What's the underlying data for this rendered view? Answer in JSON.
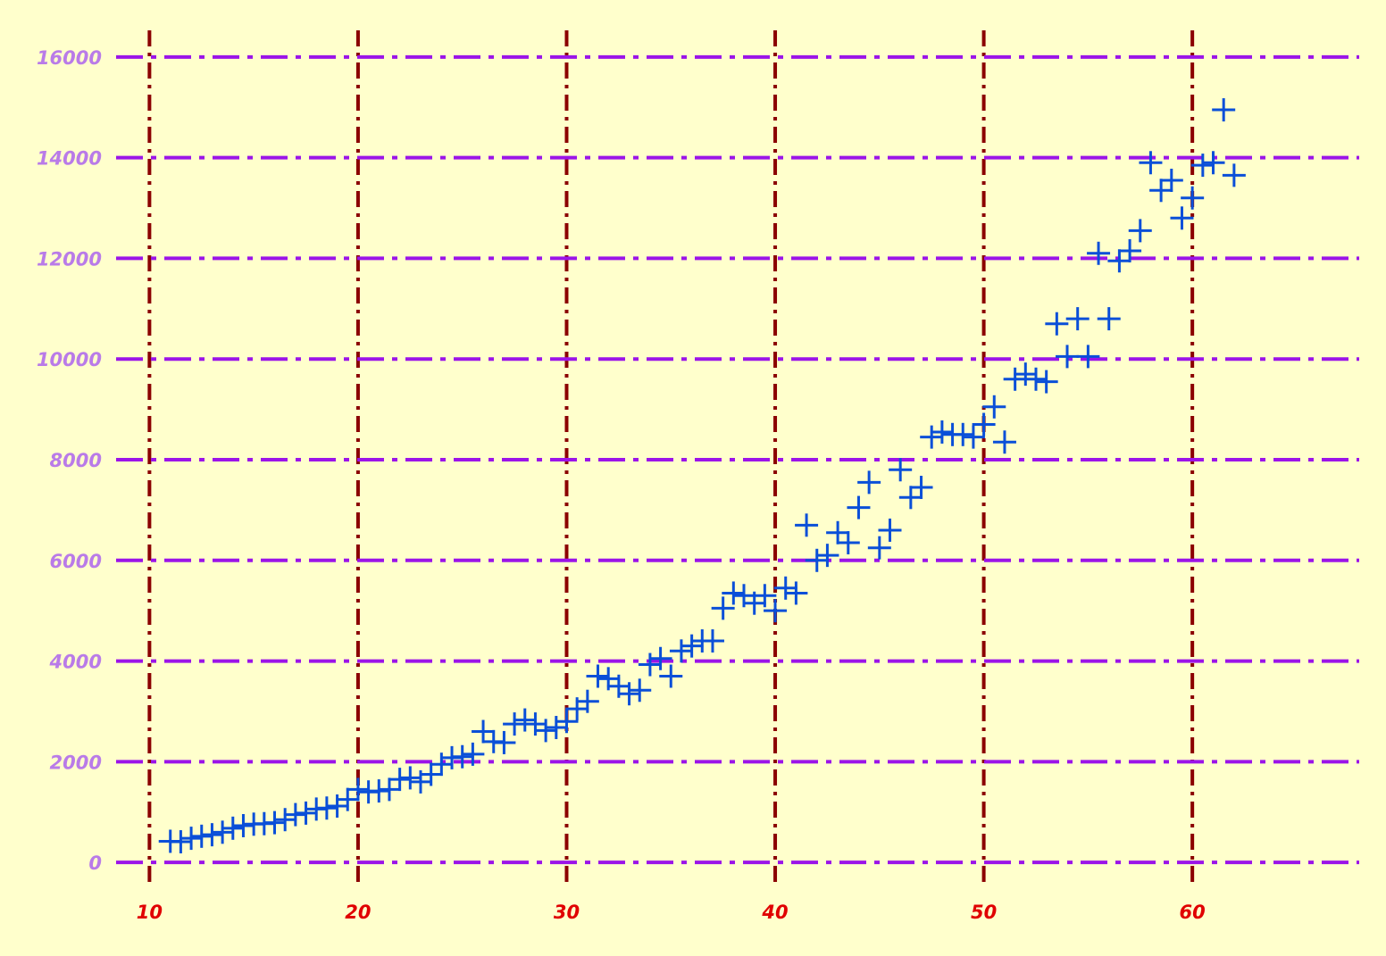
{
  "colors": {
    "background": "#ffffcc",
    "marker": "#0a4fd8",
    "hgrid": "#9b14e8",
    "vgrid": "#8b0000",
    "ytick_label": "#b97be8",
    "xtick_label": "#e00000"
  },
  "chart_data": {
    "type": "scatter",
    "title": "",
    "xlabel": "",
    "ylabel": "",
    "xlim": [
      8.4,
      68
    ],
    "ylim": [
      -600,
      16600
    ],
    "grid": true,
    "grid_style": "dash-dot",
    "marker": "plus",
    "x_ticks": [
      10,
      20,
      30,
      40,
      50,
      60
    ],
    "y_ticks": [
      0,
      2000,
      4000,
      6000,
      8000,
      10000,
      12000,
      14000,
      16000
    ],
    "x_tick_labels": [
      "10",
      "20",
      "30",
      "40",
      "50",
      "60"
    ],
    "y_tick_labels": [
      "0",
      "2000",
      "4000",
      "6000",
      "8000",
      "10000",
      "12000",
      "14000",
      "16000"
    ],
    "series": [
      {
        "points": [
          [
            11.0,
            420
          ],
          [
            11.5,
            410
          ],
          [
            12.0,
            480
          ],
          [
            12.5,
            520
          ],
          [
            13.0,
            550
          ],
          [
            13.5,
            600
          ],
          [
            14.0,
            680
          ],
          [
            14.5,
            730
          ],
          [
            15.0,
            760
          ],
          [
            15.5,
            770
          ],
          [
            16.0,
            790
          ],
          [
            16.5,
            850
          ],
          [
            17.0,
            950
          ],
          [
            17.5,
            980
          ],
          [
            18.0,
            1060
          ],
          [
            18.5,
            1080
          ],
          [
            19.0,
            1120
          ],
          [
            19.5,
            1250
          ],
          [
            20.0,
            1450
          ],
          [
            20.5,
            1400
          ],
          [
            21.0,
            1420
          ],
          [
            21.5,
            1450
          ],
          [
            22.0,
            1650
          ],
          [
            22.5,
            1680
          ],
          [
            23.0,
            1600
          ],
          [
            23.5,
            1750
          ],
          [
            24.0,
            1950
          ],
          [
            24.5,
            2080
          ],
          [
            25.0,
            2100
          ],
          [
            25.5,
            2150
          ],
          [
            26.0,
            2600
          ],
          [
            26.5,
            2400
          ],
          [
            27.0,
            2380
          ],
          [
            27.5,
            2750
          ],
          [
            28.0,
            2830
          ],
          [
            28.5,
            2750
          ],
          [
            29.0,
            2620
          ],
          [
            29.5,
            2680
          ],
          [
            30.0,
            2800
          ],
          [
            30.5,
            3050
          ],
          [
            31.0,
            3200
          ],
          [
            31.5,
            3700
          ],
          [
            32.0,
            3650
          ],
          [
            32.5,
            3500
          ],
          [
            33.0,
            3350
          ],
          [
            33.5,
            3420
          ],
          [
            34.0,
            3930
          ],
          [
            34.5,
            4050
          ],
          [
            35.0,
            3700
          ],
          [
            35.5,
            4200
          ],
          [
            36.0,
            4300
          ],
          [
            36.5,
            4400
          ],
          [
            37.0,
            4400
          ],
          [
            37.5,
            5050
          ],
          [
            38.0,
            5350
          ],
          [
            38.5,
            5300
          ],
          [
            39.0,
            5150
          ],
          [
            39.5,
            5300
          ],
          [
            40.0,
            5000
          ],
          [
            40.5,
            5450
          ],
          [
            41.0,
            5350
          ],
          [
            41.5,
            6700
          ],
          [
            42.0,
            6000
          ],
          [
            42.5,
            6100
          ],
          [
            43.0,
            6550
          ],
          [
            43.5,
            6350
          ],
          [
            44.0,
            7050
          ],
          [
            44.5,
            7550
          ],
          [
            45.0,
            6250
          ],
          [
            45.5,
            6600
          ],
          [
            46.0,
            7800
          ],
          [
            46.5,
            7250
          ],
          [
            47.0,
            7450
          ],
          [
            47.5,
            8450
          ],
          [
            48.0,
            8550
          ],
          [
            48.5,
            8500
          ],
          [
            49.0,
            8500
          ],
          [
            49.5,
            8450
          ],
          [
            50.0,
            8700
          ],
          [
            50.5,
            9050
          ],
          [
            51.0,
            8350
          ],
          [
            51.5,
            9600
          ],
          [
            52.0,
            9700
          ],
          [
            52.5,
            9600
          ],
          [
            53.0,
            9550
          ],
          [
            53.5,
            10700
          ],
          [
            54.0,
            10050
          ],
          [
            54.5,
            10800
          ],
          [
            55.0,
            10050
          ],
          [
            55.5,
            12100
          ],
          [
            56.0,
            10800
          ],
          [
            56.5,
            11950
          ],
          [
            57.0,
            12150
          ],
          [
            57.5,
            12550
          ],
          [
            58.0,
            13900
          ],
          [
            58.5,
            13350
          ],
          [
            59.0,
            13550
          ],
          [
            59.5,
            12800
          ],
          [
            60.0,
            13200
          ],
          [
            60.5,
            13850
          ],
          [
            61.0,
            13900
          ],
          [
            61.5,
            14950
          ],
          [
            62.0,
            13650
          ]
        ]
      }
    ]
  }
}
